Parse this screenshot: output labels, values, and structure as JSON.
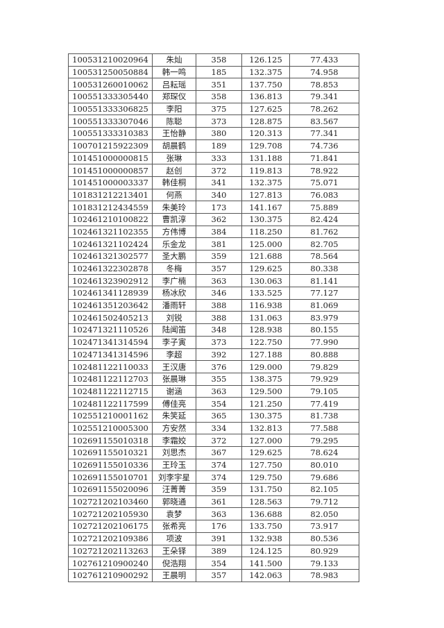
{
  "table": {
    "rows": [
      [
        "100531210020964",
        "朱灿",
        "358",
        "126.125",
        "77.433"
      ],
      [
        "100531250050884",
        "韩一鸣",
        "185",
        "132.375",
        "74.958"
      ],
      [
        "100531260010062",
        "吕耘瑶",
        "351",
        "137.750",
        "78.853"
      ],
      [
        "100551333305440",
        "郑琛仪",
        "358",
        "136.813",
        "79.341"
      ],
      [
        "100551333306825",
        "李阳",
        "375",
        "127.625",
        "78.262"
      ],
      [
        "100551333307046",
        "陈聪",
        "373",
        "128.875",
        "83.567"
      ],
      [
        "100551333310383",
        "王怡静",
        "380",
        "120.313",
        "77.341"
      ],
      [
        "100701215922309",
        "胡晨鹤",
        "189",
        "129.708",
        "74.736"
      ],
      [
        "101451000000815",
        "张琳",
        "333",
        "131.188",
        "71.841"
      ],
      [
        "101451000000857",
        "赵创",
        "372",
        "119.813",
        "78.922"
      ],
      [
        "101451000003337",
        "韩佳桐",
        "341",
        "132.375",
        "75.071"
      ],
      [
        "101831212213401",
        "何燕",
        "340",
        "127.813",
        "76.083"
      ],
      [
        "101831212434559",
        "朱美玲",
        "173",
        "141.167",
        "75.889"
      ],
      [
        "102461210100822",
        "曹凯淳",
        "362",
        "130.375",
        "82.424"
      ],
      [
        "102461321102355",
        "方伟博",
        "384",
        "118.250",
        "81.762"
      ],
      [
        "102461321102424",
        "乐金龙",
        "381",
        "125.000",
        "82.705"
      ],
      [
        "102461321302577",
        "圣大鹏",
        "359",
        "121.688",
        "78.564"
      ],
      [
        "102461322302878",
        "冬梅",
        "357",
        "129.625",
        "80.338"
      ],
      [
        "102461323902912",
        "李广楠",
        "363",
        "130.063",
        "81.141"
      ],
      [
        "102461341128939",
        "杨冰欣",
        "346",
        "133.525",
        "77.127"
      ],
      [
        "102461351203642",
        "潘雨轩",
        "388",
        "116.938",
        "81.069"
      ],
      [
        "102461502405213",
        "刘锐",
        "388",
        "131.063",
        "83.979"
      ],
      [
        "102471321110526",
        "陆闻笛",
        "348",
        "128.938",
        "80.155"
      ],
      [
        "102471341314594",
        "李子寅",
        "373",
        "122.750",
        "77.990"
      ],
      [
        "102471341314596",
        "李超",
        "392",
        "127.188",
        "80.888"
      ],
      [
        "102481122110033",
        "王汉唐",
        "376",
        "129.000",
        "79.829"
      ],
      [
        "102481122112703",
        "张晨琳",
        "355",
        "138.375",
        "79.929"
      ],
      [
        "102481122112715",
        "谢涵",
        "363",
        "129.500",
        "79.105"
      ],
      [
        "102481122117599",
        "傅佳亮",
        "354",
        "121.250",
        "77.419"
      ],
      [
        "102551210001162",
        "朱笑延",
        "365",
        "130.375",
        "81.738"
      ],
      [
        "102551210005300",
        "方安然",
        "334",
        "132.813",
        "77.588"
      ],
      [
        "102691155010318",
        "李霜姣",
        "372",
        "127.000",
        "79.295"
      ],
      [
        "102691155010321",
        "刘思杰",
        "367",
        "129.625",
        "78.624"
      ],
      [
        "102691155010336",
        "王玲玉",
        "374",
        "127.750",
        "80.010"
      ],
      [
        "102691155010701",
        "刘李宇星",
        "374",
        "129.750",
        "79.686"
      ],
      [
        "102691155020096",
        "汪菁菁",
        "359",
        "131.750",
        "82.105"
      ],
      [
        "102721202103460",
        "郭晓通",
        "361",
        "128.563",
        "79.712"
      ],
      [
        "102721202105930",
        "袁梦",
        "363",
        "136.688",
        "82.050"
      ],
      [
        "102721202106175",
        "张希亮",
        "176",
        "133.750",
        "73.917"
      ],
      [
        "102721202109386",
        "项波",
        "391",
        "132.938",
        "80.536"
      ],
      [
        "102721202113263",
        "王朵铎",
        "389",
        "124.125",
        "80.929"
      ],
      [
        "102761210900240",
        "倪浩翔",
        "354",
        "141.500",
        "79.133"
      ],
      [
        "102761210900292",
        "王晨明",
        "357",
        "142.063",
        "78.983"
      ]
    ]
  }
}
